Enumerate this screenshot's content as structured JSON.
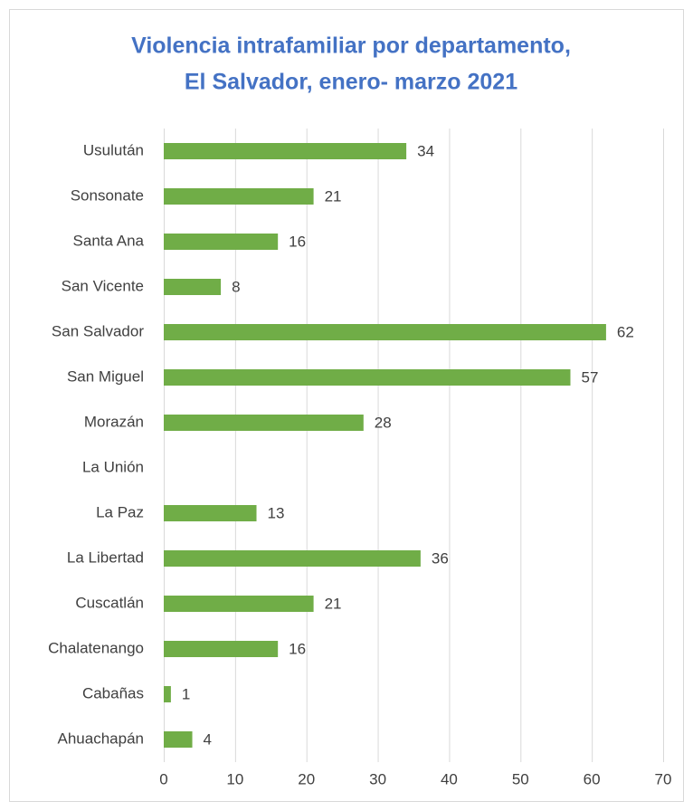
{
  "chart_data": {
    "type": "barh",
    "title": [
      "Violencia intrafamiliar por departamento,",
      "El Salvador, enero- marzo 2021"
    ],
    "categories": [
      "Usulután",
      "Sonsonate",
      "Santa Ana",
      "San Vicente",
      "San Salvador",
      "San Miguel",
      "Morazán",
      "La Unión",
      "La Paz",
      "La Libertad",
      "Cuscatlán",
      "Chalatenango",
      "Cabañas",
      "Ahuachapán"
    ],
    "values": [
      34,
      21,
      16,
      8,
      62,
      57,
      28,
      null,
      13,
      36,
      21,
      16,
      1,
      4
    ],
    "color": "#70ad47",
    "xlim": [
      0,
      70
    ],
    "xticks": [
      0,
      10,
      20,
      30,
      40,
      50,
      60,
      70
    ],
    "grid": true
  }
}
